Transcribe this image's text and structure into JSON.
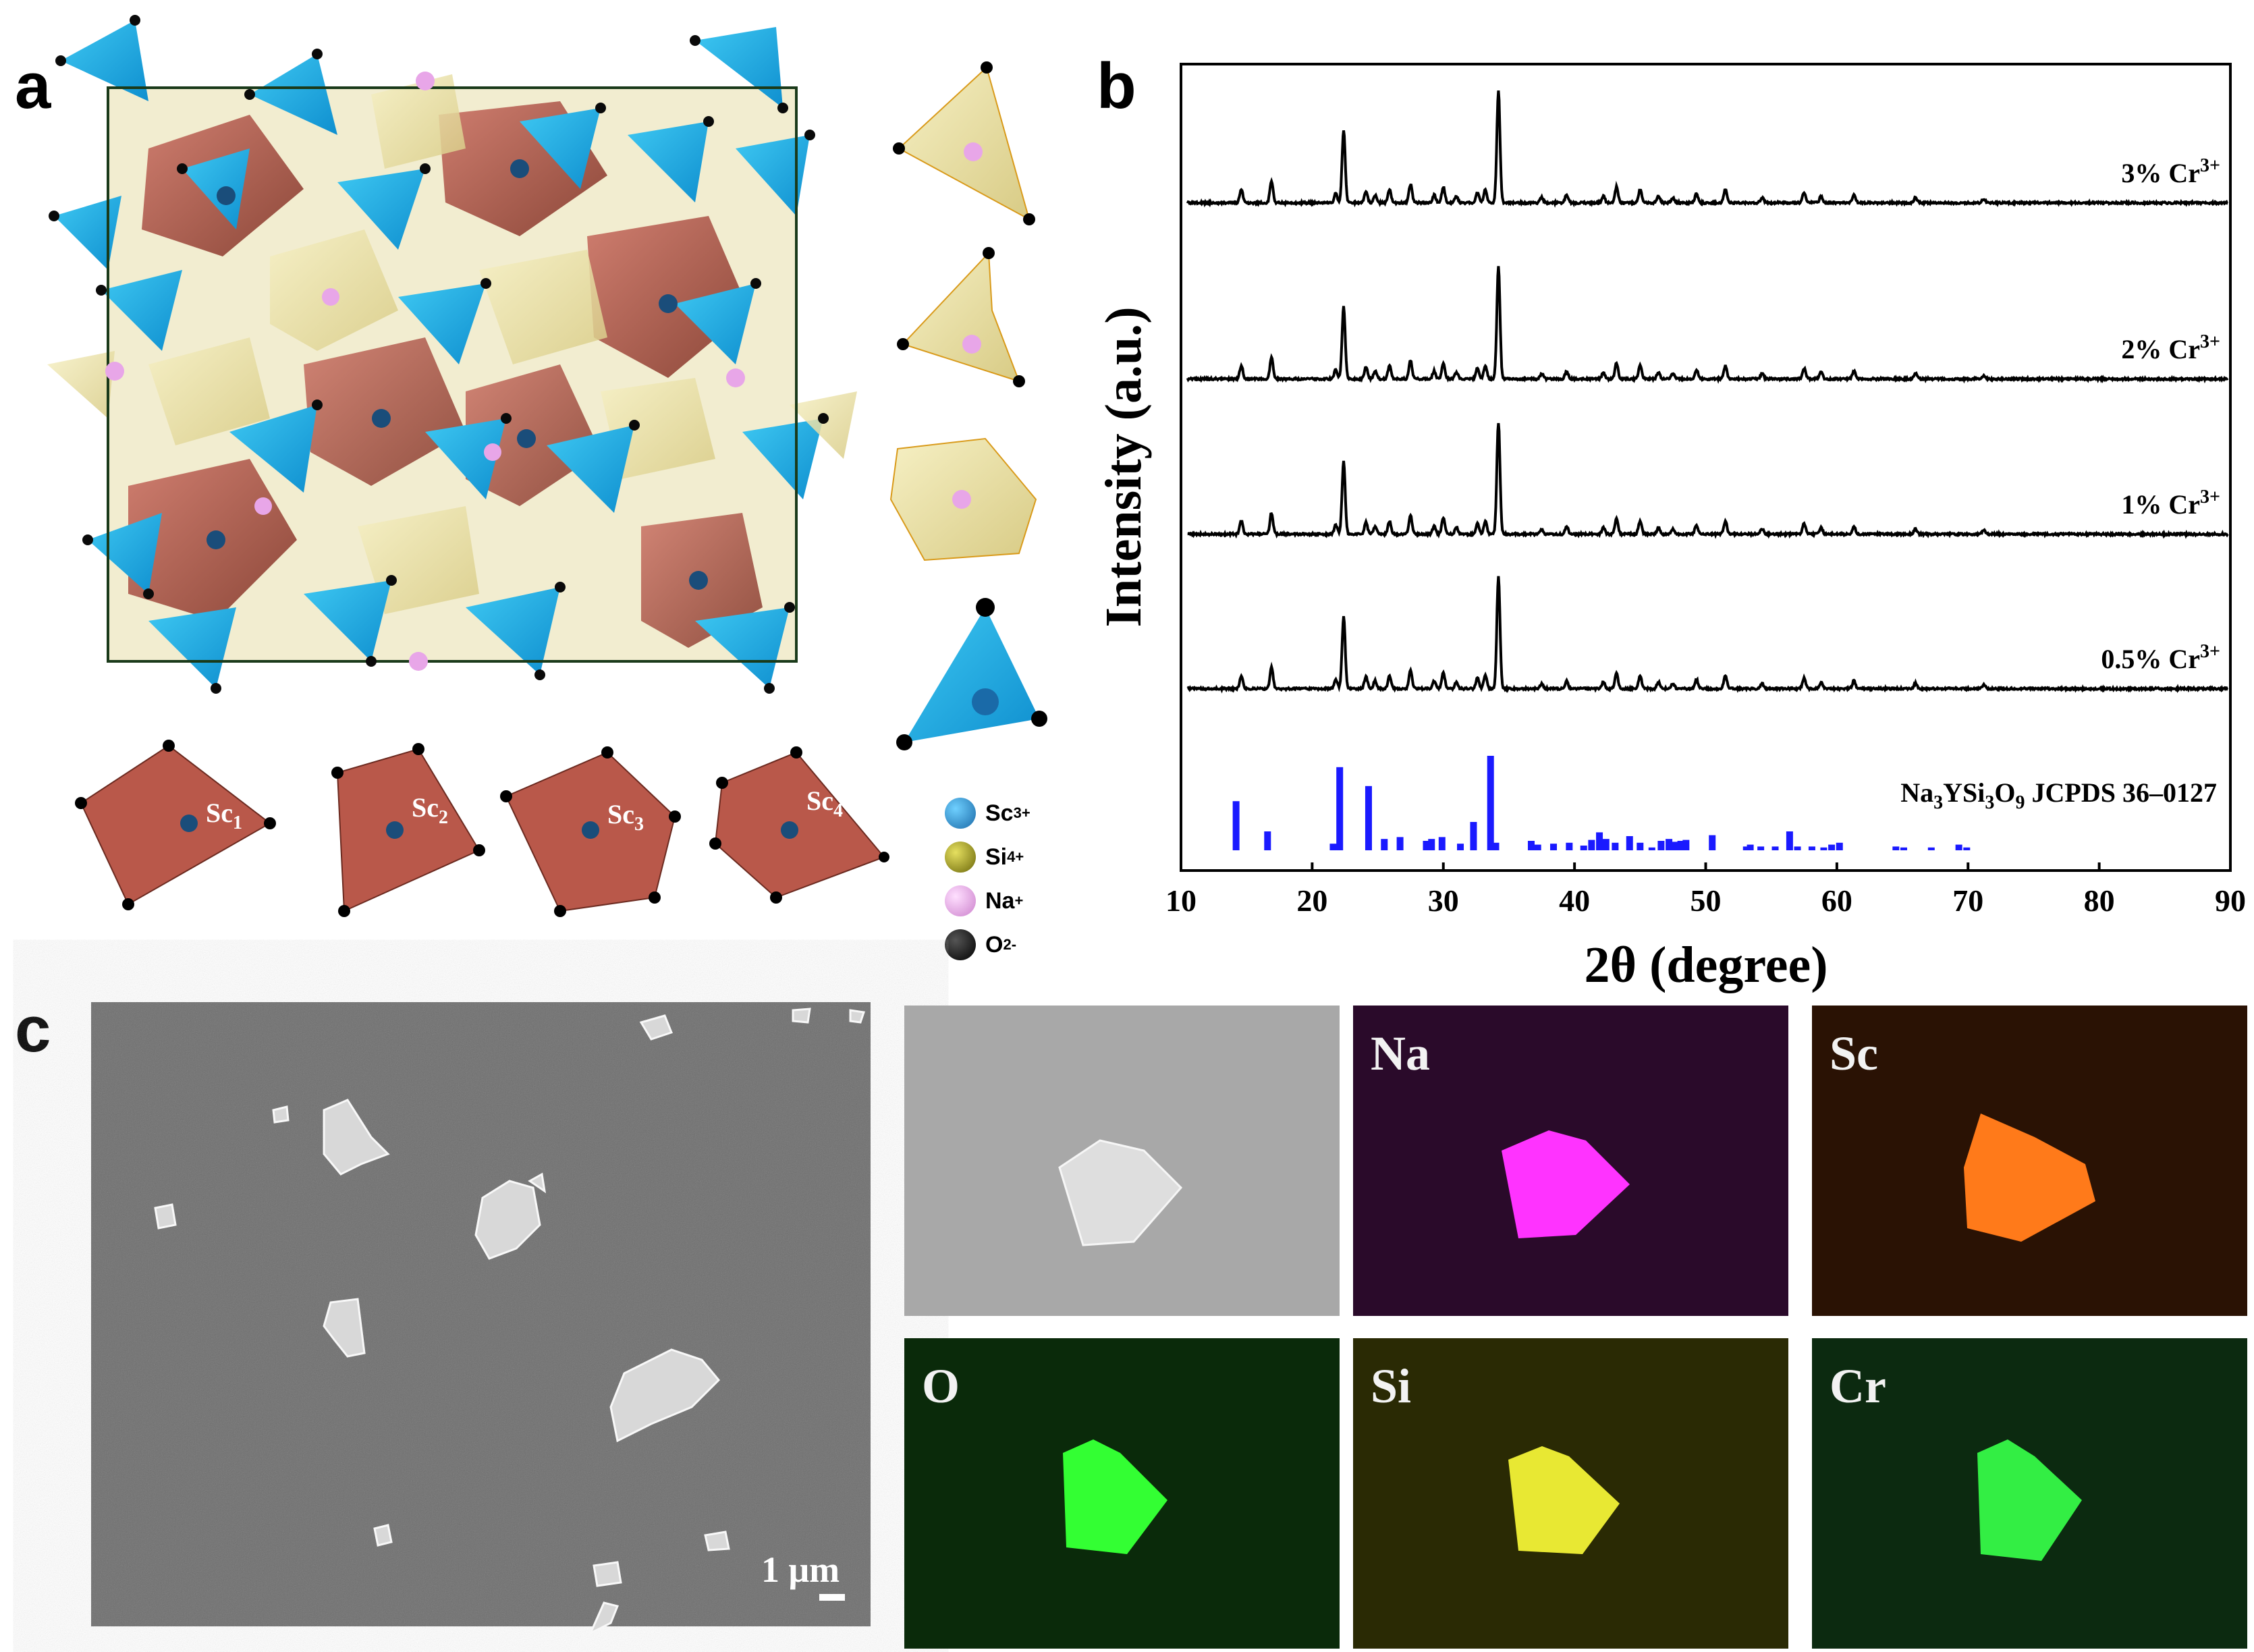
{
  "panels": {
    "a": "a",
    "b": "b",
    "c": "c"
  },
  "structure": {
    "sc_sites": [
      {
        "base": "Sc",
        "sub": "1"
      },
      {
        "base": "Sc",
        "sub": "2"
      },
      {
        "base": "Sc",
        "sub": "3"
      },
      {
        "base": "Sc",
        "sub": "4"
      }
    ],
    "legend": [
      {
        "base": "Sc",
        "sup": "3+",
        "color": "#1a7fc4"
      },
      {
        "base": "Si",
        "sup": "4+",
        "color": "#8f8a10"
      },
      {
        "base": "Na",
        "sup": "+",
        "color": "#e6a6e6"
      },
      {
        "base": "O",
        "sup": "2-",
        "color": "#0a0a0a"
      }
    ]
  },
  "chart_data": {
    "type": "line",
    "xlabel": "2θ (degree)",
    "ylabel": "Intensity (a.u.)",
    "xlim": [
      10,
      90
    ],
    "xticks": [
      10,
      20,
      30,
      40,
      50,
      60,
      70,
      80,
      90
    ],
    "series": [
      {
        "name": "3% Cr",
        "sup": "3+"
      },
      {
        "name": "2% Cr",
        "sup": "3+"
      },
      {
        "name": "1% Cr",
        "sup": "3+"
      },
      {
        "name": "0.5% Cr",
        "sup": "3+"
      }
    ],
    "peaks_2theta": [
      14.6,
      16.9,
      21.8,
      22.4,
      24.1,
      24.8,
      25.9,
      27.5,
      29.3,
      30.0,
      31.0,
      32.6,
      33.2,
      34.2,
      37.5,
      39.4,
      42.2,
      43.2,
      45.0,
      46.4,
      47.5,
      49.3,
      51.5,
      54.3,
      57.5,
      58.8,
      61.3,
      66.0,
      71.2
    ],
    "peak_heights": [
      10,
      16,
      7,
      55,
      9,
      6,
      10,
      14,
      6,
      12,
      5,
      8,
      10,
      85,
      4,
      6,
      5,
      12,
      10,
      5,
      4,
      7,
      10,
      4,
      8,
      5,
      6,
      4,
      3
    ],
    "reference": {
      "label_parts": [
        "Na",
        "3",
        "YSi",
        "3",
        "O",
        "9",
        " JCPDS 36–0127"
      ],
      "positions": [
        14.2,
        16.6,
        21.6,
        22.1,
        24.3,
        25.5,
        26.7,
        28.7,
        29.1,
        29.9,
        31.3,
        32.3,
        33.6,
        34.0,
        36.7,
        37.2,
        38.4,
        39.6,
        40.7,
        41.3,
        41.9,
        42.4,
        43.1,
        44.2,
        45.0,
        45.9,
        46.6,
        47.2,
        47.7,
        48.1,
        48.5,
        50.5,
        53.1,
        53.4,
        54.2,
        55.3,
        56.4,
        57.0,
        58.1,
        59.0,
        59.6,
        60.2,
        64.5,
        65.1,
        67.2,
        69.3,
        69.9
      ],
      "intensities": [
        52,
        20,
        7,
        88,
        68,
        12,
        14,
        10,
        12,
        14,
        7,
        30,
        100,
        8,
        10,
        6,
        7,
        8,
        5,
        11,
        19,
        12,
        8,
        15,
        8,
        3,
        10,
        12,
        9,
        10,
        11,
        16,
        4,
        6,
        4,
        4,
        20,
        4,
        4,
        3,
        6,
        8,
        4,
        3,
        3,
        6,
        3
      ]
    }
  },
  "sem": {
    "scale_bar": "1 μm",
    "maps": [
      {
        "element": "",
        "color": "#a7a7a7"
      },
      {
        "element": "Na",
        "color": "#ff33ff"
      },
      {
        "element": "Sc",
        "color": "#ff7a1a"
      },
      {
        "element": "O",
        "color": "#33ff33"
      },
      {
        "element": "Si",
        "color": "#e8e833"
      },
      {
        "element": "Cr",
        "color": "#33ee44"
      }
    ]
  }
}
